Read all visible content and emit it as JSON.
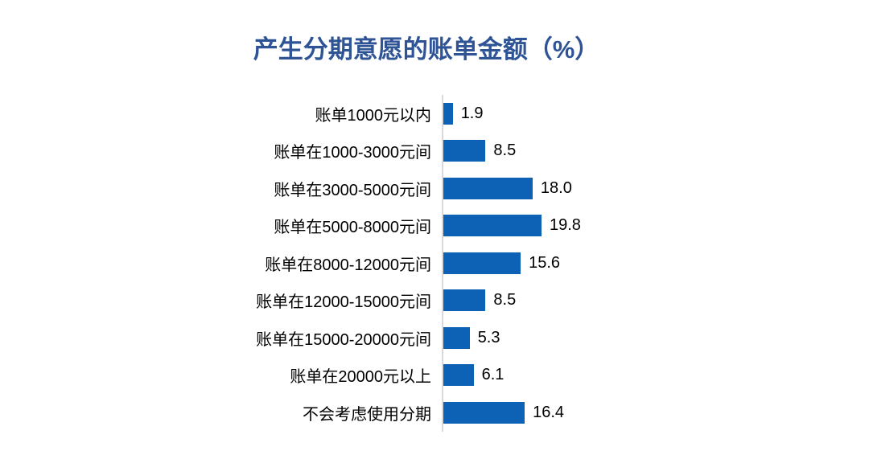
{
  "page": {
    "background_color": "#ffffff"
  },
  "chart": {
    "title": "产生分期意愿的账单金额（%）",
    "title_color": "#2F5496",
    "bar_color": "#0D62B6",
    "axis_line_color": "#D9D9D9",
    "text_color": "#000000"
  },
  "chart_data": {
    "type": "bar",
    "orientation": "horizontal",
    "title": "产生分期意愿的账单金额（%）",
    "categories": [
      "账单1000元以内",
      "账单在1000-3000元间",
      "账单在3000-5000元间",
      "账单在5000-8000元间",
      "账单在8000-12000元间",
      "账单在12000-15000元间",
      "账单在15000-20000元间",
      "账单在20000元以上",
      "不会考虑使用分期"
    ],
    "values": [
      1.9,
      8.5,
      18.0,
      19.8,
      15.6,
      8.5,
      5.3,
      6.1,
      16.4
    ],
    "value_labels": [
      "1.9",
      "8.5",
      "18.0",
      "19.8",
      "15.6",
      "8.5",
      "5.3",
      "6.1",
      "16.4"
    ],
    "xlabel": "",
    "ylabel": "",
    "xlim": [
      0,
      20
    ],
    "grid": false,
    "legend": false,
    "data_labels_position": "outside-end"
  }
}
